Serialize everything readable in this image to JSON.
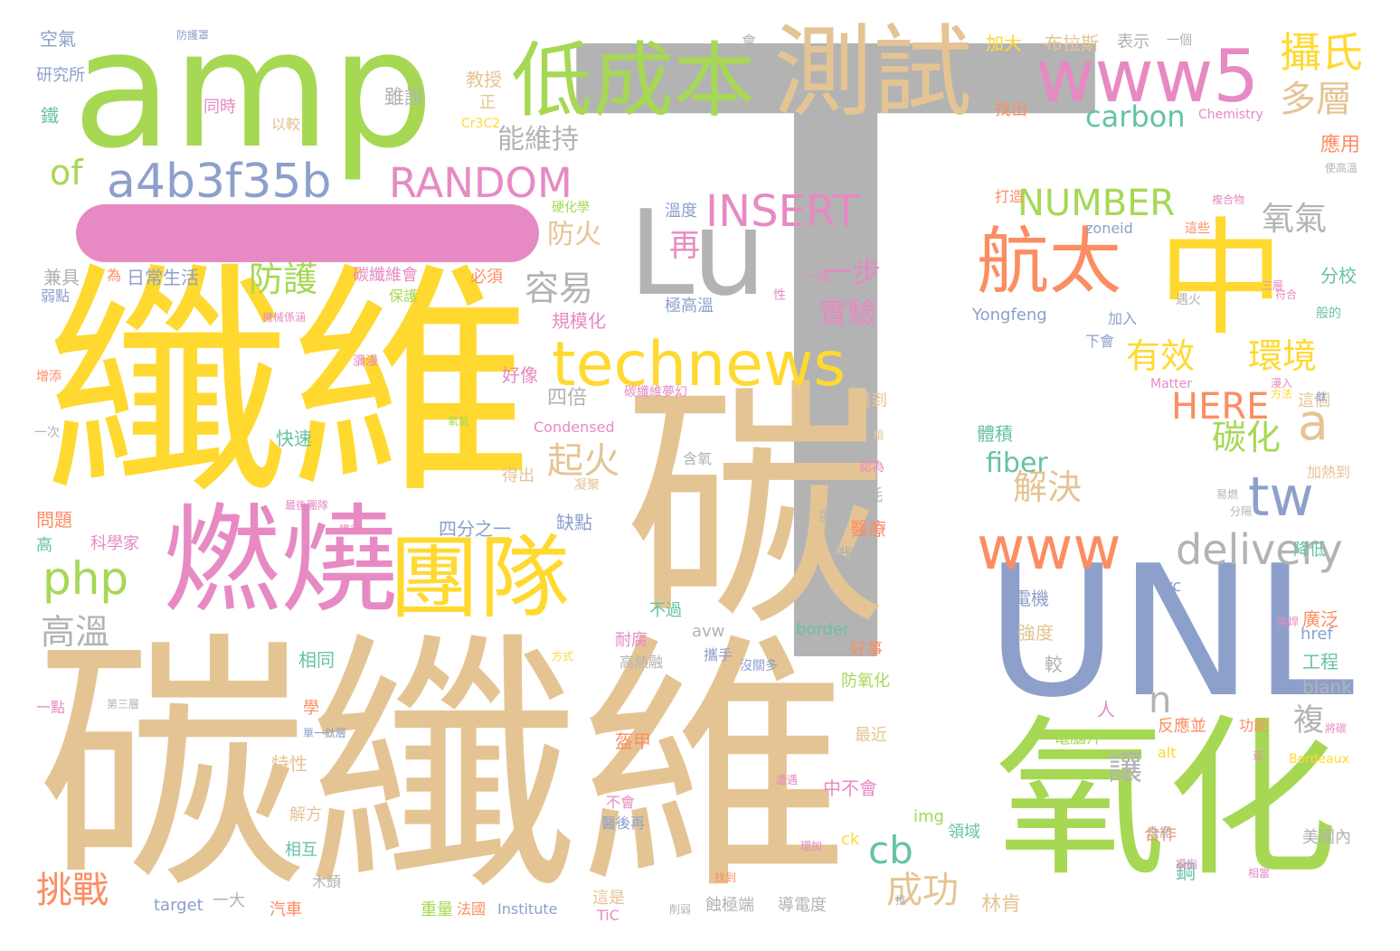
{
  "colors": {
    "gray": "#b3b3b3",
    "tan": "#e5c494",
    "yellow": "#ffd92f",
    "green": "#a6d854",
    "pink": "#e78ac3",
    "blue": "#8da0cb",
    "orange": "#fc8d62",
    "teal": "#66c2a5"
  },
  "words": [
    {
      "text": "T",
      "color": "gray"
    },
    {
      "text": "碳纖維",
      "color": "tan"
    },
    {
      "text": "纖維",
      "color": "yellow"
    },
    {
      "text": "碳",
      "color": "tan"
    },
    {
      "text": "amp",
      "color": "green"
    },
    {
      "text": "UNL",
      "color": "blue"
    },
    {
      "text": "氧化",
      "color": "green"
    },
    {
      "text": "中",
      "color": "yellow"
    },
    {
      "text": "Lu",
      "color": "gray"
    },
    {
      "text": "燃燒",
      "color": "pink"
    },
    {
      "text": "團隊",
      "color": "yellow"
    },
    {
      "text": "測試",
      "color": "tan"
    },
    {
      "text": "低成本",
      "color": "green"
    },
    {
      "text": "www5",
      "color": "pink"
    },
    {
      "text": "technews",
      "color": "yellow"
    },
    {
      "text": "www",
      "color": "orange"
    },
    {
      "text": "航太",
      "color": "orange"
    },
    {
      "text": "a4b3f35b",
      "color": "blue"
    },
    {
      "text": "RANDOM",
      "color": "pink"
    },
    {
      "text": "INSERT",
      "color": "pink"
    },
    {
      "text": "NUMBER",
      "color": "green"
    },
    {
      "text": "delivery",
      "color": "gray"
    },
    {
      "text": "php",
      "color": "green"
    },
    {
      "text": "tw",
      "color": "blue"
    },
    {
      "text": "a",
      "color": "tan"
    },
    {
      "text": "n",
      "color": "gray"
    },
    {
      "text": "cb",
      "color": "teal"
    },
    {
      "text": "攝氏",
      "color": "yellow"
    },
    {
      "text": "多層",
      "color": "tan"
    },
    {
      "text": "of",
      "color": "green"
    },
    {
      "text": "HERE",
      "color": "orange"
    },
    {
      "text": "carbon",
      "color": "teal"
    },
    {
      "text": "fiber",
      "color": "teal"
    },
    {
      "text": "氧氣",
      "color": "gray"
    },
    {
      "text": "環境",
      "color": "yellow"
    },
    {
      "text": "有效",
      "color": "yellow"
    },
    {
      "text": "碳化",
      "color": "green"
    },
    {
      "text": "解決",
      "color": "tan"
    },
    {
      "text": "高溫",
      "color": "gray"
    },
    {
      "text": "防護",
      "color": "green"
    },
    {
      "text": "容易",
      "color": "gray"
    },
    {
      "text": "再",
      "color": "pink"
    },
    {
      "text": "起火",
      "color": "tan"
    },
    {
      "text": "挑戰",
      "color": "orange"
    },
    {
      "text": "成功",
      "color": "tan"
    },
    {
      "text": "能維持",
      "color": "gray"
    },
    {
      "text": "實驗",
      "color": "pink"
    },
    {
      "text": "一步",
      "color": "pink"
    },
    {
      "text": "讓",
      "color": "gray"
    },
    {
      "text": "複",
      "color": "gray"
    },
    {
      "text": "對",
      "color": "gray"
    },
    {
      "text": "防火",
      "color": "tan"
    },
    {
      "text": "四倍",
      "color": "gray"
    },
    {
      "text": "空氣",
      "color": "blue"
    },
    {
      "text": "研究所",
      "color": "blue"
    },
    {
      "text": "鐵",
      "color": "teal"
    },
    {
      "text": "同時",
      "color": "pink"
    },
    {
      "text": "以較",
      "color": "tan"
    },
    {
      "text": "雖說",
      "color": "gray"
    },
    {
      "text": "教授",
      "color": "tan"
    },
    {
      "text": "正",
      "color": "tan"
    },
    {
      "text": "Cr3C2",
      "color": "yellow"
    },
    {
      "text": "加大",
      "color": "yellow"
    },
    {
      "text": "布拉斯",
      "color": "tan"
    },
    {
      "text": "表示",
      "color": "gray"
    },
    {
      "text": "一個",
      "color": "gray"
    },
    {
      "text": "耐高溫",
      "color": "gray"
    },
    {
      "text": "找出",
      "color": "orange"
    },
    {
      "text": "Chemistry",
      "color": "pink"
    },
    {
      "text": "應用",
      "color": "orange"
    },
    {
      "text": "兼具",
      "color": "gray"
    },
    {
      "text": "為",
      "color": "orange"
    },
    {
      "text": "日常生活",
      "color": "blue"
    },
    {
      "text": "碳纖維會",
      "color": "pink"
    },
    {
      "text": "必須",
      "color": "orange"
    },
    {
      "text": "保護",
      "color": "green"
    },
    {
      "text": "規模化",
      "color": "pink"
    },
    {
      "text": "極高溫",
      "color": "blue"
    },
    {
      "text": "溫度",
      "color": "blue"
    },
    {
      "text": "Yongfeng",
      "color": "blue"
    },
    {
      "text": "zoneid",
      "color": "blue"
    },
    {
      "text": "這些",
      "color": "orange"
    },
    {
      "text": "分校",
      "color": "teal"
    },
    {
      "text": "加入",
      "color": "blue"
    },
    {
      "text": "下會",
      "color": "blue"
    },
    {
      "text": "好像",
      "color": "pink"
    },
    {
      "text": "遇到",
      "color": "tan"
    },
    {
      "text": "這個",
      "color": "tan"
    },
    {
      "text": "體積",
      "color": "teal"
    },
    {
      "text": "快速",
      "color": "teal"
    },
    {
      "text": "Condensed",
      "color": "pink"
    },
    {
      "text": "Matter",
      "color": "pink"
    },
    {
      "text": "得出",
      "color": "tan"
    },
    {
      "text": "含氧",
      "color": "gray"
    },
    {
      "text": "加熱到",
      "color": "tan"
    },
    {
      "text": "消耗",
      "color": "gray"
    },
    {
      "text": "醫療",
      "color": "orange"
    },
    {
      "text": "四分之一",
      "color": "blue"
    },
    {
      "text": "缺點",
      "color": "blue"
    },
    {
      "text": "問題",
      "color": "orange"
    },
    {
      "text": "科學家",
      "color": "pink"
    },
    {
      "text": "高",
      "color": "teal"
    },
    {
      "text": "src",
      "color": "blue"
    },
    {
      "text": "降低",
      "color": "teal"
    },
    {
      "text": "電機",
      "color": "blue"
    },
    {
      "text": "強度",
      "color": "tan"
    },
    {
      "text": "廣泛",
      "color": "orange"
    },
    {
      "text": "href",
      "color": "blue"
    },
    {
      "text": "工程",
      "color": "teal"
    },
    {
      "text": "blank",
      "color": "gray"
    },
    {
      "text": "不過",
      "color": "teal"
    },
    {
      "text": "avw",
      "color": "gray"
    },
    {
      "text": "border",
      "color": "teal"
    },
    {
      "text": "耐腐",
      "color": "pink"
    },
    {
      "text": "攜手",
      "color": "blue"
    },
    {
      "text": "高熱融",
      "color": "gray"
    },
    {
      "text": "好事",
      "color": "orange"
    },
    {
      "text": "防氧化",
      "color": "green"
    },
    {
      "text": "相同",
      "color": "teal"
    },
    {
      "text": "較",
      "color": "gray"
    },
    {
      "text": "人",
      "color": "pink"
    },
    {
      "text": "學",
      "color": "orange"
    },
    {
      "text": "一點",
      "color": "pink"
    },
    {
      "text": "反應並",
      "color": "orange"
    },
    {
      "text": "alt",
      "color": "yellow"
    },
    {
      "text": "功能",
      "color": "orange"
    },
    {
      "text": "Bordeaux",
      "color": "yellow"
    },
    {
      "text": "盔甲",
      "color": "orange"
    },
    {
      "text": "最近",
      "color": "tan"
    },
    {
      "text": "特性",
      "color": "tan"
    },
    {
      "text": "中不會",
      "color": "pink"
    },
    {
      "text": "電腦汁",
      "color": "green"
    },
    {
      "text": "解方",
      "color": "tan"
    },
    {
      "text": "img",
      "color": "green"
    },
    {
      "text": "領域",
      "color": "teal"
    },
    {
      "text": "不會",
      "color": "pink"
    },
    {
      "text": "醫後再",
      "color": "blue"
    },
    {
      "text": "ck",
      "color": "yellow"
    },
    {
      "text": "美國內",
      "color": "gray"
    },
    {
      "text": "合作",
      "color": "orange"
    },
    {
      "text": "相互",
      "color": "teal"
    },
    {
      "text": "鋼",
      "color": "teal"
    },
    {
      "text": "林肯",
      "color": "tan"
    },
    {
      "text": "汽車",
      "color": "orange"
    },
    {
      "text": "木頭",
      "color": "gray"
    },
    {
      "text": "一大",
      "color": "gray"
    },
    {
      "text": "target",
      "color": "blue"
    },
    {
      "text": "重量",
      "color": "green"
    },
    {
      "text": "法國",
      "color": "orange"
    },
    {
      "text": "Institute",
      "color": "blue"
    },
    {
      "text": "這是",
      "color": "tan"
    },
    {
      "text": "TiC",
      "color": "pink"
    },
    {
      "text": "蝕極端",
      "color": "gray"
    },
    {
      "text": "導電度",
      "color": "gray"
    },
    {
      "text": "防護罩",
      "color": "blue"
    },
    {
      "text": "會",
      "color": "gray"
    },
    {
      "text": "一個",
      "color": "pink"
    },
    {
      "text": "弱點",
      "color": "blue"
    },
    {
      "text": "增添",
      "color": "orange"
    },
    {
      "text": "一次",
      "color": "gray"
    },
    {
      "text": "碳纖維夢幻",
      "color": "pink"
    },
    {
      "text": "打造",
      "color": "orange"
    },
    {
      "text": "硬化學",
      "color": "green"
    },
    {
      "text": "遇火",
      "color": "gray"
    },
    {
      "text": "般的",
      "color": "teal"
    },
    {
      "text": "鈦",
      "color": "blue"
    },
    {
      "text": "易燃",
      "color": "gray"
    },
    {
      "text": "分隔",
      "color": "gray"
    },
    {
      "text": "認為",
      "color": "pink"
    },
    {
      "text": "凝聚",
      "color": "tan"
    },
    {
      "text": "度",
      "color": "gray"
    },
    {
      "text": "瀰漫",
      "color": "pink"
    },
    {
      "text": "氧氣",
      "color": "green"
    },
    {
      "text": "最後團隊",
      "color": "pink"
    },
    {
      "text": "組",
      "color": "tan"
    },
    {
      "text": "漫入",
      "color": "pink"
    },
    {
      "text": "三層",
      "color": "pink"
    },
    {
      "text": "性",
      "color": "pink"
    },
    {
      "text": "複合物",
      "color": "pink"
    },
    {
      "text": "使高溫",
      "color": "gray"
    },
    {
      "text": "機械係涵",
      "color": "pink"
    },
    {
      "text": "性能",
      "color": "gray"
    },
    {
      "text": "將碳",
      "color": "pink"
    },
    {
      "text": "方式",
      "color": "yellow"
    },
    {
      "text": "第三層",
      "color": "gray"
    },
    {
      "text": "單一鈦層",
      "color": "blue"
    },
    {
      "text": "沒關多",
      "color": "blue"
    },
    {
      "text": "獲得",
      "color": "pink"
    },
    {
      "text": "遭遇",
      "color": "pink"
    },
    {
      "text": "理加",
      "color": "pink"
    },
    {
      "text": "找到",
      "color": "orange"
    },
    {
      "text": "削弱",
      "color": "gray"
    },
    {
      "text": "推",
      "color": "gray"
    },
    {
      "text": "攝指",
      "color": "pink"
    },
    {
      "text": "相當",
      "color": "pink"
    },
    {
      "text": "強焊",
      "color": "pink"
    },
    {
      "text": "符合",
      "color": "pink"
    },
    {
      "text": "方法",
      "color": "yellow"
    },
    {
      "text": "這",
      "color": "pink"
    },
    {
      "text": "加",
      "color": "pink"
    },
    {
      "text": "擁有",
      "color": "pink"
    }
  ]
}
